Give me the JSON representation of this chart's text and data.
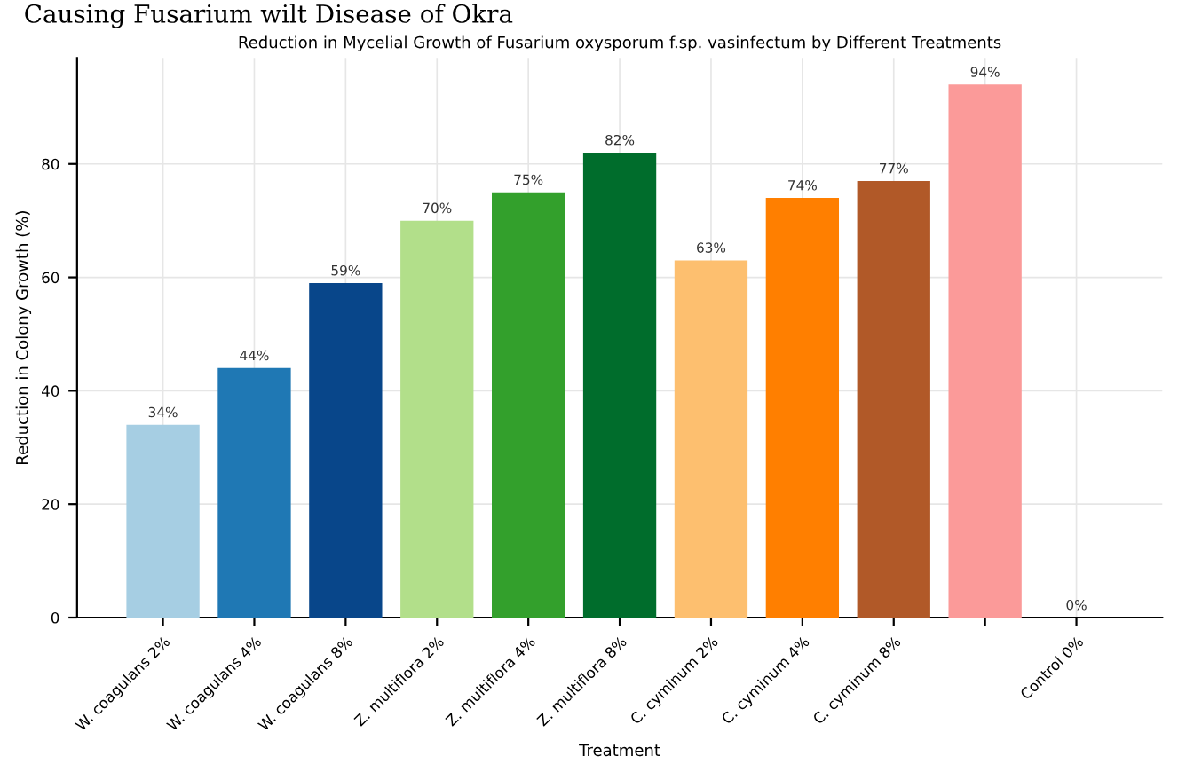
{
  "chart_data": {
    "type": "bar",
    "title": "Reduction in Mycelial Growth of Fusarium oxysporum f.sp. vasinfectum by Different Treatments",
    "xlabel": "Treatment",
    "ylabel": "Reduction in Colony Growth (%)",
    "annotations": [
      "Causing Fusarium wilt Disease of Okra"
    ],
    "categories": [
      "W. coagulans 2%",
      "W. coagulans 4%",
      "W. coagulans 8%",
      "Z. multiflora 2%",
      "Z. multiflora 4%",
      "Z. multiflora 8%",
      "C. cyminum 2%",
      "C. cyminum 4%",
      "C. cyminum 8%",
      null,
      "Control 0%"
    ],
    "values": [
      34,
      44,
      59,
      70,
      75,
      82,
      63,
      74,
      77,
      94,
      0
    ],
    "value_labels": [
      "34%",
      "44%",
      "59%",
      "70%",
      "75%",
      "82%",
      "63%",
      "74%",
      "77%",
      "94%",
      "0%"
    ],
    "colors": [
      "#a6cee3",
      "#1f78b4",
      "#08468a",
      "#b2df8a",
      "#33a02c",
      "#006d2c",
      "#fdbf6f",
      "#ff7f00",
      "#b15928",
      "#fb9a99",
      "#ffffff"
    ],
    "ylim": [
      0,
      98.7
    ],
    "yticks": [
      0,
      20,
      40,
      60,
      80
    ],
    "grid": true
  }
}
